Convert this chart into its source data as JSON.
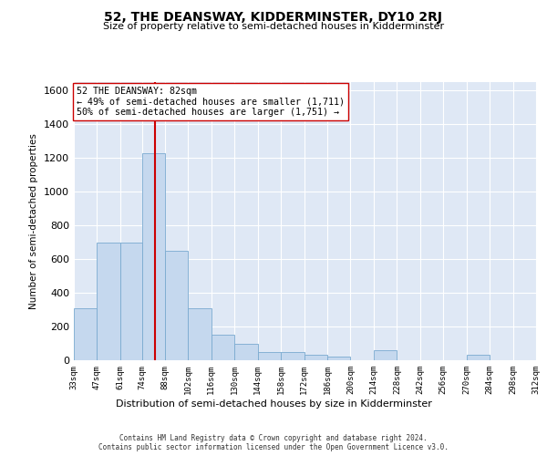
{
  "title": "52, THE DEANSWAY, KIDDERMINSTER, DY10 2RJ",
  "subtitle": "Size of property relative to semi-detached houses in Kidderminster",
  "xlabel": "Distribution of semi-detached houses by size in Kidderminster",
  "ylabel": "Number of semi-detached properties",
  "bar_color": "#c5d8ee",
  "bar_edge_color": "#7aaad0",
  "background_color": "#dfe8f5",
  "grid_color": "#ffffff",
  "vline_x": 82,
  "vline_color": "#cc0000",
  "annotation_line1": "52 THE DEANSWAY: 82sqm",
  "annotation_line2": "← 49% of semi-detached houses are smaller (1,711)",
  "annotation_line3": "50% of semi-detached houses are larger (1,751) →",
  "footer_line1": "Contains HM Land Registry data © Crown copyright and database right 2024.",
  "footer_line2": "Contains public sector information licensed under the Open Government Licence v3.0.",
  "bin_edges": [
    33,
    47,
    61,
    74,
    88,
    102,
    116,
    130,
    144,
    158,
    172,
    186,
    200,
    214,
    228,
    242,
    256,
    270,
    284,
    298,
    312
  ],
  "bin_labels": [
    "33sqm",
    "47sqm",
    "61sqm",
    "74sqm",
    "88sqm",
    "102sqm",
    "116sqm",
    "130sqm",
    "144sqm",
    "158sqm",
    "172sqm",
    "186sqm",
    "200sqm",
    "214sqm",
    "228sqm",
    "242sqm",
    "256sqm",
    "270sqm",
    "284sqm",
    "298sqm",
    "312sqm"
  ],
  "bar_heights": [
    310,
    700,
    700,
    1230,
    650,
    310,
    150,
    100,
    50,
    50,
    30,
    20,
    0,
    60,
    0,
    0,
    0,
    30,
    0,
    0
  ],
  "ylim": [
    0,
    1650
  ],
  "yticks": [
    0,
    200,
    400,
    600,
    800,
    1000,
    1200,
    1400,
    1600
  ]
}
